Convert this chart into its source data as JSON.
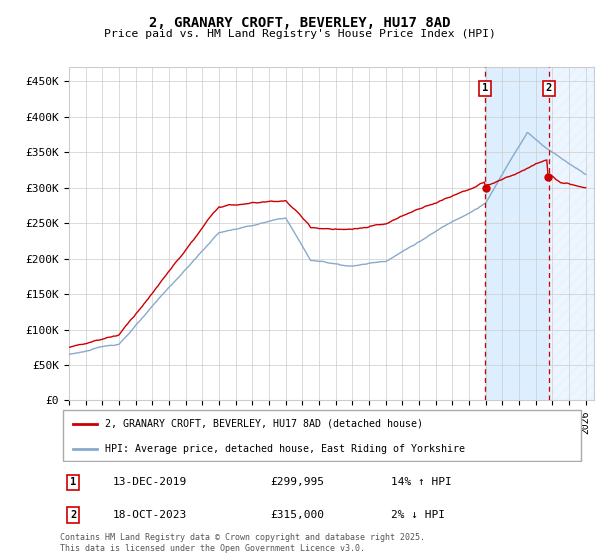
{
  "title": "2, GRANARY CROFT, BEVERLEY, HU17 8AD",
  "subtitle": "Price paid vs. HM Land Registry's House Price Index (HPI)",
  "yticks": [
    0,
    50000,
    100000,
    150000,
    200000,
    250000,
    300000,
    350000,
    400000,
    450000
  ],
  "ytick_labels": [
    "£0",
    "£50K",
    "£100K",
    "£150K",
    "£200K",
    "£250K",
    "£300K",
    "£350K",
    "£400K",
    "£450K"
  ],
  "red_line_color": "#cc0000",
  "blue_line_color": "#88aacc",
  "highlight_color": "#ddeeff",
  "dashed_line_color": "#cc0000",
  "transaction1": {
    "date": "13-DEC-2019",
    "price": 299995,
    "label": "1",
    "hpi_diff": "14% ↑ HPI",
    "year": 2019.96
  },
  "transaction2": {
    "date": "18-OCT-2023",
    "price": 315000,
    "label": "2",
    "hpi_diff": "2% ↓ HPI",
    "year": 2023.79
  },
  "legend_red": "2, GRANARY CROFT, BEVERLEY, HU17 8AD (detached house)",
  "legend_blue": "HPI: Average price, detached house, East Riding of Yorkshire",
  "footer": "Contains HM Land Registry data © Crown copyright and database right 2025.\nThis data is licensed under the Open Government Licence v3.0.",
  "background_color": "#ffffff",
  "grid_color": "#cccccc"
}
